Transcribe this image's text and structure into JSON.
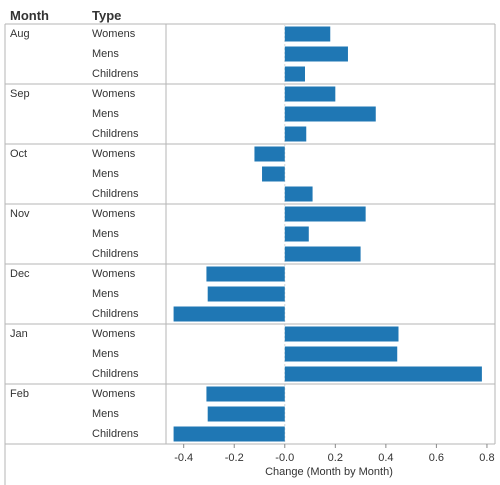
{
  "chart_data": {
    "type": "bar",
    "orientation": "horizontal",
    "row_headers": [
      "Month",
      "Type"
    ],
    "months": [
      "Aug",
      "Sep",
      "Oct",
      "Nov",
      "Dec",
      "Jan",
      "Feb"
    ],
    "types": [
      "Womens",
      "Mens",
      "Childrens"
    ],
    "values": [
      [
        0.18,
        0.25,
        0.08
      ],
      [
        0.2,
        0.36,
        0.085
      ],
      [
        -0.12,
        -0.09,
        0.11
      ],
      [
        0.32,
        0.095,
        0.3
      ],
      [
        -0.31,
        -0.305,
        -0.44
      ],
      [
        0.45,
        0.445,
        0.78
      ],
      [
        -0.31,
        -0.305,
        -0.44
      ]
    ],
    "xlabel": "Change (Month by Month)",
    "xlim": [
      -0.47,
      0.82
    ],
    "xticks": [
      -0.4,
      -0.2,
      0.0,
      0.2,
      0.4,
      0.6,
      0.8
    ],
    "xtick_labels": [
      "-0.4",
      "-0.2",
      "-0.0",
      "0.2",
      "0.4",
      "0.6",
      "0.8"
    ],
    "bar_color": "#1f77b4",
    "grid": false
  }
}
